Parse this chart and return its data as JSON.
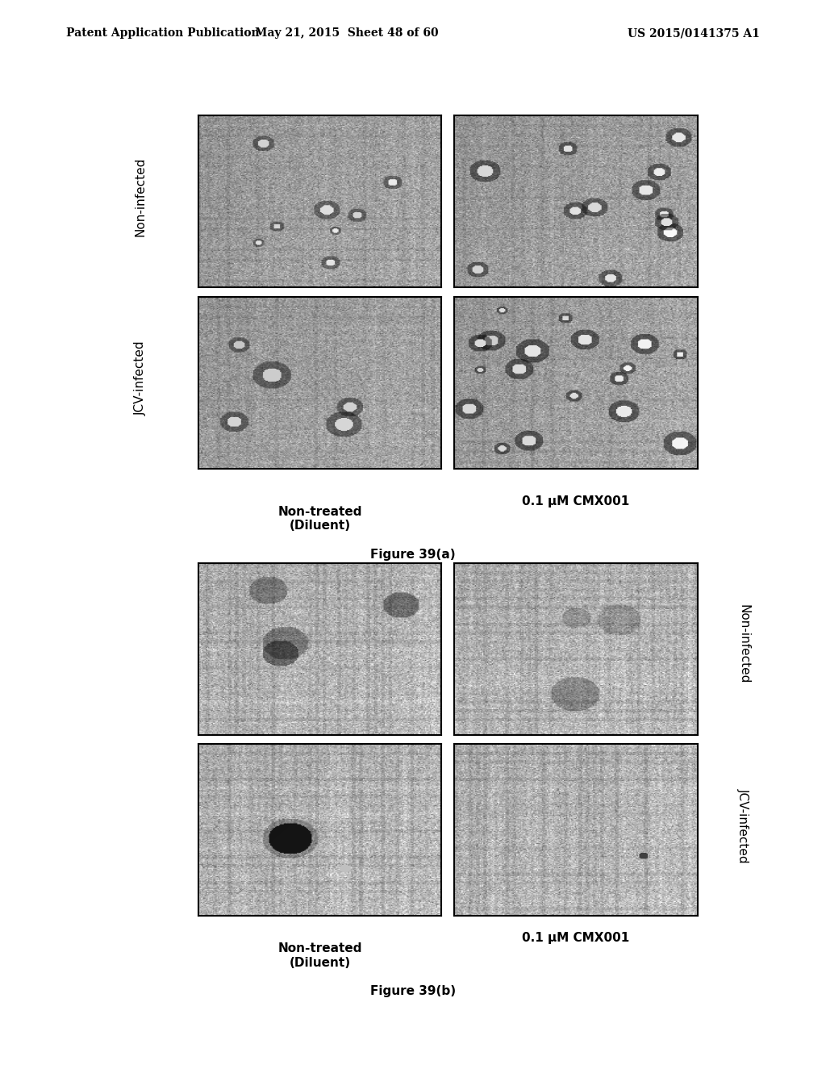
{
  "header_left": "Patent Application Publication",
  "header_center": "May 21, 2015  Sheet 48 of 60",
  "header_right": "US 2015/0141375 A1",
  "fig_a_caption": "Figure 39(a)",
  "fig_b_caption": "Figure 39(b)",
  "fig_a_xlabel_left": "Non-treated\n(Diluent)",
  "fig_a_xlabel_right": "0.1 μM CMX001",
  "fig_b_xlabel_left": "Non-treated\n(Diluent)",
  "fig_b_xlabel_right": "0.1 μM CMX001",
  "fig_a_ylabel_top": "Non-infected",
  "fig_a_ylabel_bottom": "JCV-infected",
  "fig_b_ylabel_top": "Non-infected",
  "fig_b_ylabel_bottom": "JCV-infected",
  "background_color": "#ffffff",
  "header_fontsize": 10,
  "label_fontsize": 11,
  "caption_fontsize": 11
}
